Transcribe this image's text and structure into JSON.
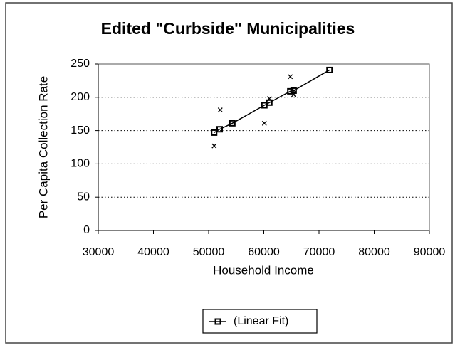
{
  "chart_data": {
    "type": "scatter",
    "title": "Edited \"Curbside\" Municipalities",
    "x_label": "Household Income",
    "y_label": "Per Capita Collection Rate",
    "xlim": [
      30000,
      90000
    ],
    "xticks": [
      30000,
      40000,
      50000,
      60000,
      70000,
      80000,
      90000
    ],
    "ylim": [
      0,
      250
    ],
    "yticks": [
      0,
      50,
      100,
      150,
      200,
      250
    ],
    "grid": true,
    "legend": "bottom",
    "series": [
      {
        "color": "#000000",
        "marker": "x",
        "x": [
          51000,
          52100,
          60100,
          61000,
          64800,
          65400,
          65500
        ],
        "values": [
          127,
          181,
          161,
          198,
          231,
          204,
          210
        ]
      },
      {
        "name": "(Linear Fit)",
        "color": "#000000",
        "marker": "square",
        "line": true,
        "x": [
          51000,
          52000,
          54300,
          60100,
          61000,
          64800,
          65400,
          71900
        ],
        "values": [
          147,
          152,
          161,
          188,
          192,
          209,
          210,
          241
        ]
      }
    ]
  }
}
